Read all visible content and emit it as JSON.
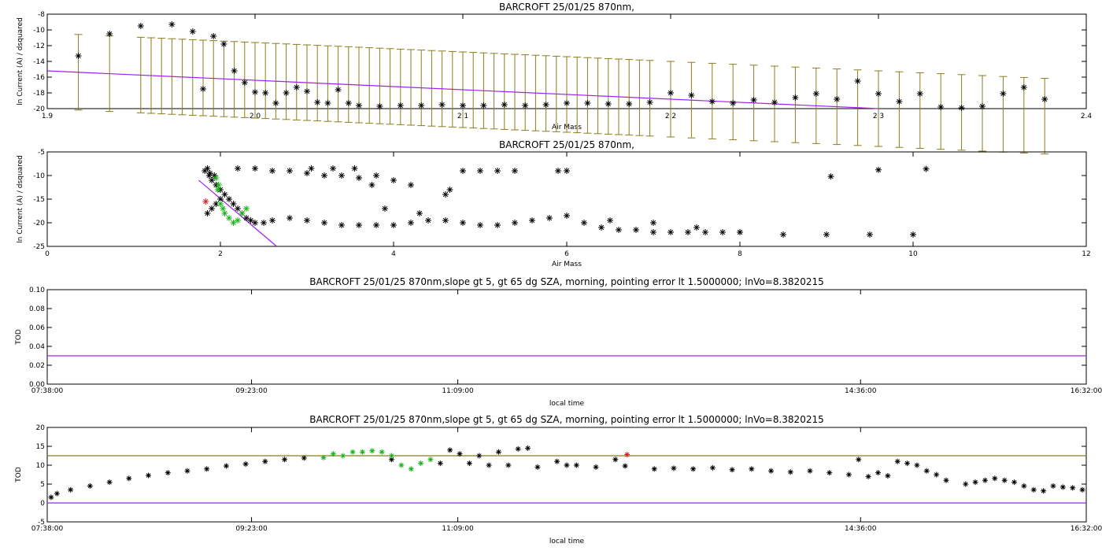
{
  "colors": {
    "black": "#000000",
    "olive": "#8b7d1a",
    "purple": "#a020f0",
    "green": "#19b219",
    "red": "#e01f1f"
  },
  "charts": [
    {
      "type": "scatter",
      "title": "BARCROFT 25/01/25 870nm,",
      "xlabel": "Air Mass",
      "ylabel": "ln Current (A) / dsquared",
      "xlim": [
        1.9,
        2.4
      ],
      "ylim": [
        -20,
        -8
      ],
      "xticks": [
        "1.9",
        "2.0",
        "2.1",
        "2.2",
        "2.3",
        "2.4"
      ],
      "yticks": [
        "-20",
        "-18",
        "-16",
        "-14",
        "-12",
        "-10",
        "-8"
      ],
      "points_x": [
        1.915,
        1.93,
        1.945,
        1.96,
        1.97,
        1.975,
        1.98,
        1.985,
        1.99,
        1.995,
        2.0,
        2.005,
        2.01,
        2.015,
        2.02,
        2.025,
        2.03,
        2.035,
        2.04,
        2.045,
        2.05,
        2.06,
        2.07,
        2.08,
        2.09,
        2.1,
        2.11,
        2.12,
        2.13,
        2.14,
        2.15,
        2.16,
        2.17,
        2.18,
        2.19,
        2.2,
        2.21,
        2.22,
        2.23,
        2.24,
        2.25,
        2.26,
        2.27,
        2.28,
        2.29,
        2.3,
        2.31,
        2.32,
        2.33,
        2.34,
        2.35,
        2.36,
        2.37,
        2.38
      ],
      "points_y": [
        -13.3,
        -10.5,
        -9.5,
        -9.3,
        -10.2,
        -17.5,
        -10.8,
        -11.8,
        -15.2,
        -16.7,
        -17.9,
        -18.0,
        -19.3,
        -18.0,
        -17.3,
        -17.8,
        -19.2,
        -19.3,
        -17.6,
        -19.3,
        -19.6,
        -19.7,
        -19.6,
        -19.6,
        -19.5,
        -19.6,
        -19.6,
        -19.5,
        -19.6,
        -19.5,
        -19.3,
        -19.3,
        -19.4,
        -19.4,
        -19.2,
        -18.0,
        -18.3,
        -19.1,
        -19.3,
        -18.9,
        -19.2,
        -18.6,
        -18.1,
        -18.8,
        -16.5,
        -18.1,
        -19.1,
        -18.1,
        -19.8,
        -19.9,
        -19.7,
        -18.1,
        -17.3,
        -18.8
      ],
      "errbar_x": [
        1.915,
        1.93,
        1.945,
        1.95,
        1.955,
        1.96,
        1.965,
        1.97,
        1.975,
        1.98,
        1.985,
        1.99,
        1.995,
        2.0,
        2.005,
        2.01,
        2.015,
        2.02,
        2.025,
        2.03,
        2.035,
        2.04,
        2.045,
        2.05,
        2.055,
        2.06,
        2.065,
        2.07,
        2.075,
        2.08,
        2.085,
        2.09,
        2.095,
        2.1,
        2.105,
        2.11,
        2.115,
        2.12,
        2.125,
        2.13,
        2.135,
        2.14,
        2.145,
        2.15,
        2.155,
        2.16,
        2.165,
        2.17,
        2.175,
        2.18,
        2.185,
        2.19,
        2.2,
        2.21,
        2.22,
        2.23,
        2.24,
        2.25,
        2.26,
        2.27,
        2.28,
        2.29,
        2.3,
        2.31,
        2.32,
        2.33,
        2.34,
        2.35,
        2.36,
        2.37,
        2.38
      ],
      "errbar_half_width": 4.8,
      "fit_line": [
        [
          1.9,
          -15.2
        ],
        [
          2.3,
          -20.0
        ]
      ],
      "errbar_color": "#8b7d1a",
      "fit_color": "#a020f0"
    },
    {
      "type": "scatter",
      "title": "BARCROFT 25/01/25 870nm,",
      "xlabel": "Air Mass",
      "ylabel": "ln Current (A) / dsquared",
      "xlim": [
        0,
        12
      ],
      "ylim": [
        -25,
        -5
      ],
      "xticks": [
        "0",
        "2",
        "4",
        "6",
        "8",
        "10",
        "12"
      ],
      "yticks": [
        "-25",
        "-20",
        "-15",
        "-10",
        "-5"
      ],
      "black_x": [
        1.85,
        1.87,
        1.9,
        1.95,
        2.0,
        2.05,
        2.1,
        2.15,
        2.2,
        2.25,
        2.3,
        2.35,
        2.4,
        2.5,
        2.6,
        2.8,
        3.0,
        3.2,
        3.4,
        3.6,
        3.8,
        4.0,
        4.2,
        4.4,
        4.6,
        4.8,
        5.0,
        5.2,
        5.4,
        5.6,
        5.8,
        6.0,
        6.2,
        6.4,
        6.6,
        6.8,
        7.0,
        7.2,
        7.4,
        7.6,
        7.8,
        8.0,
        2.2,
        2.4,
        2.6,
        2.8,
        3.0,
        3.2,
        3.4,
        3.6,
        3.8,
        4.0,
        4.2,
        4.6,
        4.8,
        5.0,
        5.2,
        5.4,
        5.9,
        6.0,
        6.5,
        7.0,
        7.5,
        8.0,
        8.5,
        9.0,
        9.5,
        10.0,
        3.05,
        3.3,
        3.55,
        3.75,
        3.9,
        4.3,
        4.65,
        9.05,
        9.6,
        10.15,
        1.85,
        1.9,
        1.95,
        2.0,
        1.82,
        1.88,
        1.93
      ],
      "black_y": [
        -8.5,
        -10,
        -11,
        -12,
        -13,
        -14,
        -15,
        -16,
        -17,
        -18,
        -19,
        -19.5,
        -20,
        -20,
        -19.5,
        -19,
        -19.5,
        -20,
        -20.5,
        -20.5,
        -20.5,
        -20.5,
        -20,
        -19.5,
        -19.5,
        -20,
        -20.5,
        -20.5,
        -20,
        -19.5,
        -19,
        -18.5,
        -20,
        -21,
        -21.5,
        -21.5,
        -22,
        -22,
        -22,
        -22,
        -22,
        -22,
        -8.5,
        -8.5,
        -9,
        -9,
        -9.5,
        -10,
        -10,
        -10.5,
        -10,
        -11,
        -12,
        -14,
        -9,
        -9,
        -9,
        -9,
        -9,
        -9,
        -19.5,
        -20,
        -21,
        -22,
        -22.5,
        -22.5,
        -22.5,
        -22.5,
        -8.5,
        -8.5,
        -8.5,
        -12,
        -17,
        -18,
        -13,
        -10.2,
        -8.8,
        -8.6,
        -18,
        -17,
        -16,
        -15,
        -9,
        -9.5,
        -10
      ],
      "green_x": [
        1.95,
        1.98,
        2.0,
        2.05,
        2.1,
        2.15,
        2.2,
        2.25,
        2.3,
        1.97,
        2.03
      ],
      "green_y": [
        -10.5,
        -12,
        -16,
        -18,
        -19,
        -20,
        -19.5,
        -18,
        -17,
        -13,
        -17
      ],
      "red_x": [
        1.83
      ],
      "red_y": [
        -15.5
      ],
      "fit_line": [
        [
          1.75,
          -11.0
        ],
        [
          2.65,
          -25.0
        ]
      ],
      "fit_color": "#a020f0"
    },
    {
      "type": "line",
      "title": "BARCROFT 25/01/25 870nm,slope gt 5, gt 65 dg SZA, morning, pointing error lt 1.5000000; lnVo=8.3820215",
      "xlabel": "local time",
      "ylabel": "TOD",
      "ylim": [
        0,
        0.1
      ],
      "yticks": [
        "0.00",
        "0.02",
        "0.04",
        "0.06",
        "0.08",
        "0.10"
      ],
      "xticks": [
        "07:38:00",
        "09:23:00",
        "11:09:00",
        "14:36:00",
        "16:32:00"
      ],
      "xtick_minutes": [
        458,
        563,
        669,
        876,
        992
      ],
      "xlim_minutes": [
        458,
        992
      ],
      "hline_value": 0.03,
      "hline_color": "#a020f0"
    },
    {
      "type": "scatter",
      "title": "BARCROFT 25/01/25 870nm,slope gt 5, gt 65 dg SZA, morning, pointing error lt 1.5000000; lnVo=8.3820215",
      "xlabel": "local time",
      "ylabel": "TOD",
      "ylim": [
        -5,
        20
      ],
      "yticks": [
        "-5",
        "0",
        "5",
        "10",
        "15",
        "20"
      ],
      "xticks": [
        "07:38:00",
        "09:23:00",
        "11:09:00",
        "14:36:00",
        "16:32:00"
      ],
      "xtick_minutes": [
        458,
        563,
        669,
        876,
        992
      ],
      "xlim_minutes": [
        458,
        992
      ],
      "hline_olive": 12.5,
      "hline_purple": 0,
      "series_black": [
        [
          460,
          1.5
        ],
        [
          463,
          2.5
        ],
        [
          470,
          3.5
        ],
        [
          480,
          4.5
        ],
        [
          490,
          5.5
        ],
        [
          500,
          6.5
        ],
        [
          510,
          7.3
        ],
        [
          520,
          8.0
        ],
        [
          530,
          8.5
        ],
        [
          540,
          9.0
        ],
        [
          550,
          9.8
        ],
        [
          560,
          10.3
        ],
        [
          570,
          11.0
        ],
        [
          580,
          11.5
        ],
        [
          590,
          11.9
        ],
        [
          635,
          11.5
        ],
        [
          660,
          10.5
        ],
        [
          665,
          14.0
        ],
        [
          670,
          13.0
        ],
        [
          675,
          10.5
        ],
        [
          680,
          12.5
        ],
        [
          685,
          10.0
        ],
        [
          690,
          13.5
        ],
        [
          695,
          10.0
        ],
        [
          700,
          14.3
        ],
        [
          705,
          14.5
        ],
        [
          710,
          9.5
        ],
        [
          720,
          11.0
        ],
        [
          725,
          10.0
        ],
        [
          730,
          10.0
        ],
        [
          740,
          9.5
        ],
        [
          750,
          11.5
        ],
        [
          755,
          9.8
        ],
        [
          770,
          9.0
        ],
        [
          780,
          9.2
        ],
        [
          790,
          9.0
        ],
        [
          800,
          9.3
        ],
        [
          810,
          8.8
        ],
        [
          820,
          9.0
        ],
        [
          830,
          8.5
        ],
        [
          840,
          8.2
        ],
        [
          850,
          8.5
        ],
        [
          860,
          8.0
        ],
        [
          870,
          7.5
        ],
        [
          875,
          11.5
        ],
        [
          880,
          7.0
        ],
        [
          885,
          8.0
        ],
        [
          890,
          7.2
        ],
        [
          895,
          11.0
        ],
        [
          900,
          10.5
        ],
        [
          905,
          10.0
        ],
        [
          910,
          8.5
        ],
        [
          915,
          7.5
        ],
        [
          920,
          6.0
        ],
        [
          930,
          5.0
        ],
        [
          935,
          5.5
        ],
        [
          940,
          6.0
        ],
        [
          945,
          6.5
        ],
        [
          950,
          6.0
        ],
        [
          955,
          5.5
        ],
        [
          960,
          4.5
        ],
        [
          965,
          3.5
        ],
        [
          970,
          3.2
        ],
        [
          975,
          4.5
        ],
        [
          980,
          4.2
        ],
        [
          985,
          4.0
        ],
        [
          990,
          3.5
        ]
      ],
      "series_green": [
        [
          600,
          12.0
        ],
        [
          605,
          13.0
        ],
        [
          610,
          12.5
        ],
        [
          615,
          13.5
        ],
        [
          620,
          13.5
        ],
        [
          625,
          13.8
        ],
        [
          630,
          13.5
        ],
        [
          635,
          12.5
        ],
        [
          640,
          10.0
        ],
        [
          645,
          9.0
        ],
        [
          650,
          10.5
        ],
        [
          655,
          11.5
        ]
      ],
      "series_red": [
        [
          756,
          12.8
        ]
      ],
      "olive_color": "#8b7d1a",
      "purple_color": "#a020f0"
    }
  ]
}
